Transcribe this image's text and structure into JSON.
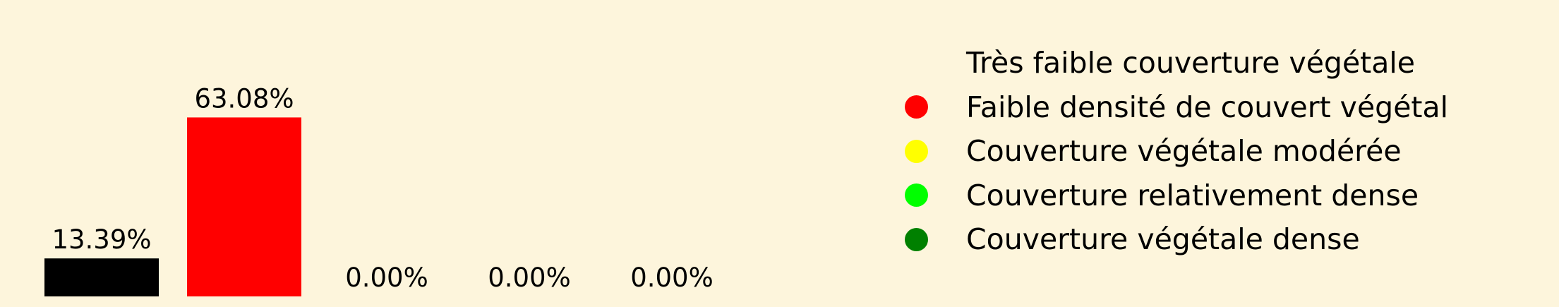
{
  "chart_data": {
    "type": "bar",
    "categories": [
      "Très faible couverture végétale",
      "Faible densité de couvert végétal",
      "Couverture végétale modérée",
      "Couverture relativement dense",
      "Couverture végétale dense"
    ],
    "values": [
      13.39,
      63.08,
      0.0,
      0.0,
      0.0
    ],
    "value_labels": [
      "13.39%",
      "63.08%",
      "0.00%",
      "0.00%",
      "0.00%"
    ],
    "colors": [
      "#000000",
      "#ff0000",
      "#ffff00",
      "#00ff00",
      "#008000"
    ],
    "legend": {
      "placement": "right",
      "items": [
        {
          "label": "Très faible couverture végétale",
          "color": "#000000"
        },
        {
          "label": "Faible densité de couvert végétal",
          "color": "#ff0000"
        },
        {
          "label": "Couverture végétale modérée",
          "color": "#ffff00"
        },
        {
          "label": "Couverture relativement dense",
          "color": "#00ff00"
        },
        {
          "label": "Couverture végétale dense",
          "color": "#008000"
        }
      ]
    },
    "grid": false,
    "axes_visible": false
  }
}
